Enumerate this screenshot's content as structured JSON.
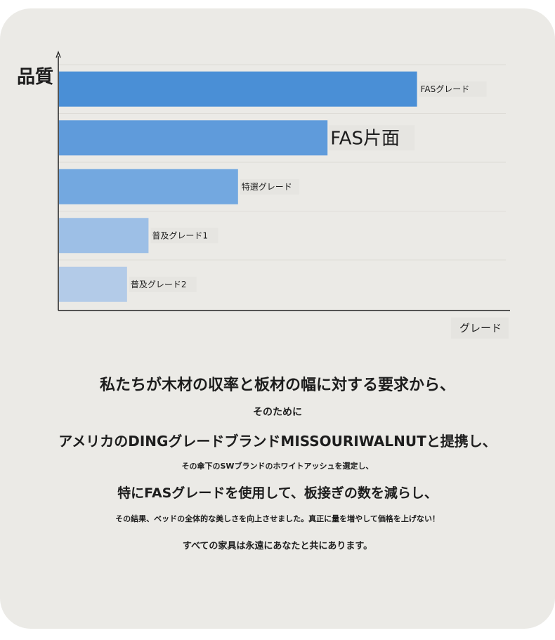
{
  "chart_data": {
    "type": "bar",
    "orientation": "horizontal",
    "ylabel": "品質",
    "xlabel": "グレード",
    "categories": [
      "FASグレード",
      "FAS片面",
      "特選グレード",
      "普及グレード1",
      "普及グレード2"
    ],
    "values": [
      100,
      75,
      50,
      25,
      19
    ],
    "xlim": [
      0,
      125
    ],
    "colors": [
      "#4a8fd6",
      "#5f9bdb",
      "#73a8e0",
      "#9dbfe6",
      "#b3cbe8"
    ],
    "grid": true,
    "legend": "none"
  },
  "text": {
    "line1": "私たちが木材の収率と板材の幅に対する要求から、",
    "line2": "そのために",
    "line3": "アメリカのDINGグレードブランドMISSOURIWALNUTと提携し、",
    "line4": "その傘下のSWブランドのホワイトアッシュを選定し、",
    "line5": "特にFASグレードを使用して、板接ぎの数を減らし、",
    "line6": "その結果、ベッドの全体的な美しさを向上させました。真正に量を増やして価格を上げない！",
    "line7": "すべての家具は永遠にあなたと共にあります。"
  }
}
